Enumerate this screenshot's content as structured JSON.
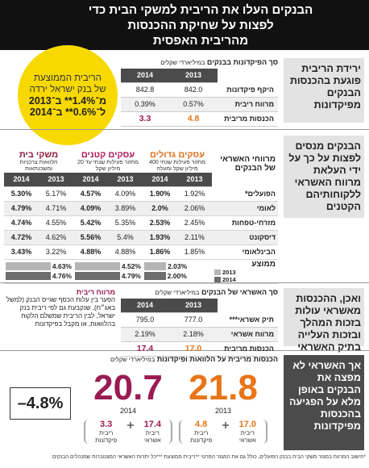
{
  "header": {
    "title_lines": [
      "הבנקים העלו את הריבית למשקי הבית כדי",
      "לפצות על שחיקת ההכנסות",
      "מהריבית האפסית"
    ]
  },
  "callout": {
    "label": "הריבית הממוצעת של בנק ישראל ירדה",
    "from": "מ־1.4%** ב־2013",
    "to": "ל־0.6%** ב־2014"
  },
  "side_notes": [
    "ירידת הריבית פוגעת בהכנסות הבנקים מפיקדונות",
    "הבנקים מנסים לפצות על כך על ידי העלאת מרווח האשראי ללקוחותיהם הקטנים",
    "ואכן, ההכנסות מאשראי עולות בזכות המהלך ובזכות העלייה בתיק האשראי",
    "אך האשראי לא מפצה את הבנקים באופן מלא על הפגיעה בהכנסות מפיקדונות"
  ],
  "deposits": {
    "title": "סך הפיקדונות בבנקים",
    "unit": "במיליארדי שקלים",
    "columns": [
      "2013",
      "2014"
    ],
    "rows": [
      {
        "label": "היקף פיקדונות",
        "values": [
          "842.0",
          "842.8"
        ]
      },
      {
        "label": "מרווח ריבית",
        "values": [
          "0.57%",
          "0.39%"
        ]
      },
      {
        "label": "הכנסות מריבית",
        "values": [
          "4.8",
          "3.3"
        ]
      }
    ]
  },
  "spreads": {
    "row_header": "מרווחי האשראי של הבנקים",
    "years": [
      "2013",
      "2014"
    ],
    "banks": [
      "הפועלים*",
      "לאומי",
      "מזרחי-טפחות",
      "דיסקונט",
      "הבינלאומי"
    ],
    "groups": [
      {
        "name": "עסקים גדולים",
        "desc": "מחזור פעילות שנתי 400 מיליון שקל ומעלה",
        "values": [
          [
            "1.92%",
            "1.90%"
          ],
          [
            "2.06%",
            "2.0%"
          ],
          [
            "2.45%",
            "2.53%"
          ],
          [
            "2.11%",
            "1.93%"
          ],
          [
            "1.85%",
            "1.86%"
          ]
        ]
      },
      {
        "name": "עסקים קטנים",
        "desc": "מחזור פעילות שנתי עד 20 מיליון שקל",
        "values": [
          [
            "4.09%",
            "4.57%"
          ],
          [
            "3.89%",
            "4.09%"
          ],
          [
            "5.35%",
            "5.42%"
          ],
          [
            "5.4%",
            "5.56%"
          ],
          [
            "4.88%",
            "4.88%"
          ]
        ]
      },
      {
        "name": "משקי בית",
        "desc": "הלוואות צרכניות ומשכנתאות",
        "values": [
          [
            "5.17%",
            "5.30%"
          ],
          [
            "4.71%",
            "4.79%"
          ],
          [
            "4.55%",
            "4.74%"
          ],
          [
            "4.62%",
            "4.72%"
          ],
          [
            "3.22%",
            "3.43%"
          ]
        ]
      }
    ],
    "average": {
      "label": "ממוצע",
      "values": [
        [
          2.03,
          2.0
        ],
        [
          4.52,
          4.79
        ],
        [
          4.63,
          4.76
        ]
      ],
      "value_labels": [
        [
          "2.03%",
          "2.00%"
        ],
        [
          "4.52%",
          "4.79%"
        ],
        [
          "4.63%",
          "4.76%"
        ]
      ]
    }
  },
  "spread_note": {
    "title": "מרווח ריבית",
    "text": "הפער בין עלות הכסף שגייס הבנק (למשל באג״ח), שנקבעת גם לפי ריבית בנק ישראל, לבין הריבית שמשלם הלקוח בהלוואות, או מקבל בפיקדונות"
  },
  "credit": {
    "title": "סך האשראי של הבנקים",
    "unit": "במיליארדי שקלים",
    "columns": [
      "2013",
      "2014"
    ],
    "rows": [
      {
        "label": "תיק אשראי***",
        "values": [
          "777.0",
          "795.0"
        ]
      },
      {
        "label": "מרווח אשראי",
        "values": [
          "2.18%",
          "2.19%"
        ]
      },
      {
        "label": "הכנסות מריבית",
        "values": [
          "17.0",
          "17.4"
        ]
      }
    ]
  },
  "income": {
    "title": "הכנסות מריבית על הלוואות ופיקדונות",
    "unit": "במיליארדי שקלים",
    "part_labels": [
      "ריבית אשראי",
      "ריבית פיקדונות"
    ],
    "change": "–4.8%",
    "years": [
      {
        "year": "2013",
        "total": "21.8",
        "credit": "17.0",
        "deposits": "4.8"
      },
      {
        "year": "2014",
        "total": "20.7",
        "credit": "17.4",
        "deposits": "3.3"
      }
    ]
  },
  "footnote": "*חישוב המרווח במגזר משקי הבית בבנק הפועלים, כולל גם את המגזר הפרטי **ריבית ממוצעת ***כל יתרות האשראי המצטברות שמנהלים הבנקים"
}
